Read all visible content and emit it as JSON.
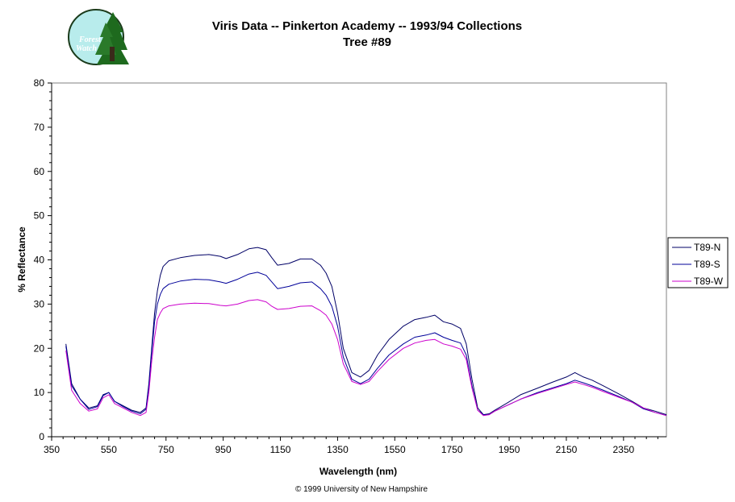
{
  "logo": {
    "text_line1": "Forest",
    "text_line2": "Watch"
  },
  "footer": "© 1999 University of New Hampshire",
  "chart_data": {
    "type": "line",
    "title": "Viris Data -- Pinkerton Academy -- 1993/94 Collections",
    "subtitle": "Tree #89",
    "xlabel": "Wavelength (nm)",
    "ylabel": "% Reflectance",
    "xlim": [
      350,
      2500
    ],
    "ylim": [
      0,
      80
    ],
    "xticks": [
      350,
      550,
      750,
      950,
      1150,
      1350,
      1550,
      1750,
      1950,
      2150,
      2350
    ],
    "yticks": [
      0,
      10,
      20,
      30,
      40,
      50,
      60,
      70,
      80
    ],
    "grid": false,
    "legend_position": "right",
    "series": [
      {
        "name": "T89-N",
        "color": "#000066",
        "x": [
          400,
          420,
          450,
          480,
          510,
          530,
          550,
          570,
          600,
          630,
          660,
          680,
          690,
          700,
          710,
          720,
          730,
          740,
          760,
          800,
          850,
          900,
          940,
          960,
          1000,
          1040,
          1070,
          1100,
          1120,
          1140,
          1180,
          1220,
          1260,
          1290,
          1310,
          1330,
          1350,
          1370,
          1400,
          1430,
          1460,
          1490,
          1530,
          1580,
          1620,
          1660,
          1690,
          1720,
          1750,
          1780,
          1800,
          1820,
          1840,
          1860,
          1880,
          1900,
          1940,
          1990,
          2050,
          2100,
          2150,
          2180,
          2210,
          2240,
          2280,
          2330,
          2380,
          2420,
          2460,
          2500
        ],
        "values": [
          21,
          12,
          8.5,
          6.5,
          7,
          9.5,
          10,
          8,
          7,
          6,
          5.5,
          6.5,
          12,
          20,
          28,
          33,
          36.5,
          38.5,
          39.8,
          40.5,
          41,
          41.2,
          40.8,
          40.3,
          41.2,
          42.5,
          42.8,
          42.3,
          40.5,
          38.8,
          39.2,
          40.2,
          40.2,
          38.8,
          37,
          34,
          28,
          20,
          14.5,
          13.5,
          15,
          18.5,
          22,
          25,
          26.5,
          27,
          27.5,
          26,
          25.5,
          24.5,
          21,
          13,
          6.5,
          5,
          5.2,
          6,
          7.5,
          9.5,
          11,
          12.3,
          13.5,
          14.5,
          13.5,
          12.8,
          11.5,
          9.8,
          8,
          6.5,
          5.8,
          5
        ]
      },
      {
        "name": "T89-S",
        "color": "#000099",
        "x": [
          400,
          420,
          450,
          480,
          510,
          530,
          550,
          570,
          600,
          630,
          660,
          680,
          690,
          700,
          710,
          720,
          730,
          740,
          760,
          800,
          850,
          900,
          940,
          960,
          1000,
          1040,
          1070,
          1100,
          1120,
          1140,
          1180,
          1220,
          1260,
          1290,
          1310,
          1330,
          1350,
          1370,
          1400,
          1430,
          1460,
          1490,
          1530,
          1580,
          1620,
          1660,
          1690,
          1720,
          1750,
          1780,
          1800,
          1820,
          1840,
          1860,
          1880,
          1900,
          1940,
          1990,
          2050,
          2100,
          2150,
          2180,
          2210,
          2240,
          2280,
          2330,
          2380,
          2420,
          2460,
          2500
        ],
        "values": [
          20.5,
          11.5,
          8.5,
          6.2,
          6.8,
          9.3,
          10,
          8,
          6.8,
          5.8,
          5.2,
          6.2,
          11.5,
          19,
          26,
          30,
          32.2,
          33.5,
          34.5,
          35.2,
          35.6,
          35.5,
          35,
          34.7,
          35.6,
          36.8,
          37.2,
          36.5,
          35,
          33.5,
          34,
          34.8,
          35,
          33.5,
          32,
          29.5,
          25,
          18,
          13,
          12,
          13,
          15.5,
          18.5,
          21,
          22.5,
          23,
          23.5,
          22.5,
          21.8,
          21.2,
          18.5,
          11.5,
          6,
          5,
          5,
          5.8,
          7,
          8.5,
          10,
          11,
          12,
          12.8,
          12.2,
          11.5,
          10.5,
          9.2,
          7.8,
          6.3,
          5.5,
          4.8
        ]
      },
      {
        "name": "T89-W",
        "color": "#cc00cc",
        "x": [
          400,
          420,
          450,
          480,
          510,
          530,
          550,
          570,
          600,
          630,
          660,
          680,
          690,
          700,
          710,
          720,
          730,
          740,
          760,
          800,
          850,
          900,
          940,
          960,
          1000,
          1040,
          1070,
          1100,
          1120,
          1140,
          1180,
          1220,
          1260,
          1290,
          1310,
          1330,
          1350,
          1370,
          1400,
          1430,
          1460,
          1490,
          1530,
          1580,
          1620,
          1660,
          1690,
          1720,
          1750,
          1780,
          1800,
          1820,
          1840,
          1860,
          1880,
          1900,
          1940,
          1990,
          2050,
          2100,
          2150,
          2180,
          2210,
          2240,
          2280,
          2330,
          2380,
          2420,
          2460,
          2500
        ],
        "values": [
          19.5,
          10.5,
          7.5,
          5.8,
          6.3,
          8.8,
          9.5,
          7.5,
          6.5,
          5.5,
          4.8,
          5.5,
          10,
          17,
          22.5,
          26.5,
          28,
          29,
          29.6,
          30,
          30.2,
          30.1,
          29.7,
          29.6,
          30,
          30.8,
          31,
          30.5,
          29.5,
          28.8,
          29,
          29.5,
          29.6,
          28.5,
          27.5,
          25.5,
          22,
          16.5,
          12.5,
          11.8,
          12.5,
          14.8,
          17.5,
          20,
          21.2,
          21.8,
          22,
          21,
          20.5,
          19.8,
          17.5,
          11,
          6,
          4.8,
          5,
          5.8,
          7,
          8.5,
          9.8,
          10.8,
          11.8,
          12.4,
          11.8,
          11.2,
          10.2,
          9,
          7.8,
          6.5,
          5.5,
          4.8
        ]
      }
    ]
  }
}
